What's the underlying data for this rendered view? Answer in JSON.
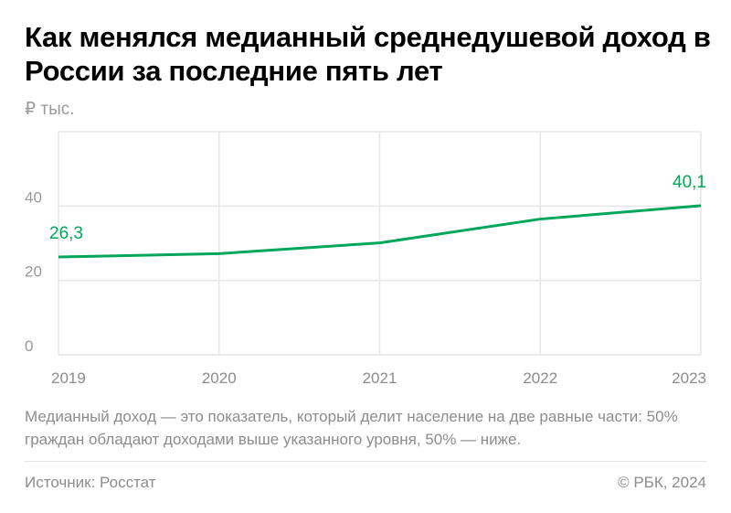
{
  "title": "Как менялся медианный среднедушевой доход в России за последние пять лет",
  "note": "Медианный доход — это показатель, который делит население на две равные части: 50% граждан обладают доходами выше указанного уровня, 50% — ниже.",
  "source": "Источник: Росстат",
  "copyright": "© РБК, 2024",
  "chart_data": {
    "type": "line",
    "ylabel": "₽ тыс.",
    "categories": [
      "2019",
      "2020",
      "2021",
      "2022",
      "2023"
    ],
    "values": [
      26.3,
      27.2,
      30.1,
      36.5,
      40.1
    ],
    "data_labels": [
      {
        "index": 0,
        "text": "26,3"
      },
      {
        "index": 4,
        "text": "40,1"
      }
    ],
    "yticks": [
      0,
      20,
      40
    ],
    "ylim": [
      0,
      60
    ],
    "grid": true,
    "line_color": "#00a65a",
    "label_color": "#00a65a"
  }
}
